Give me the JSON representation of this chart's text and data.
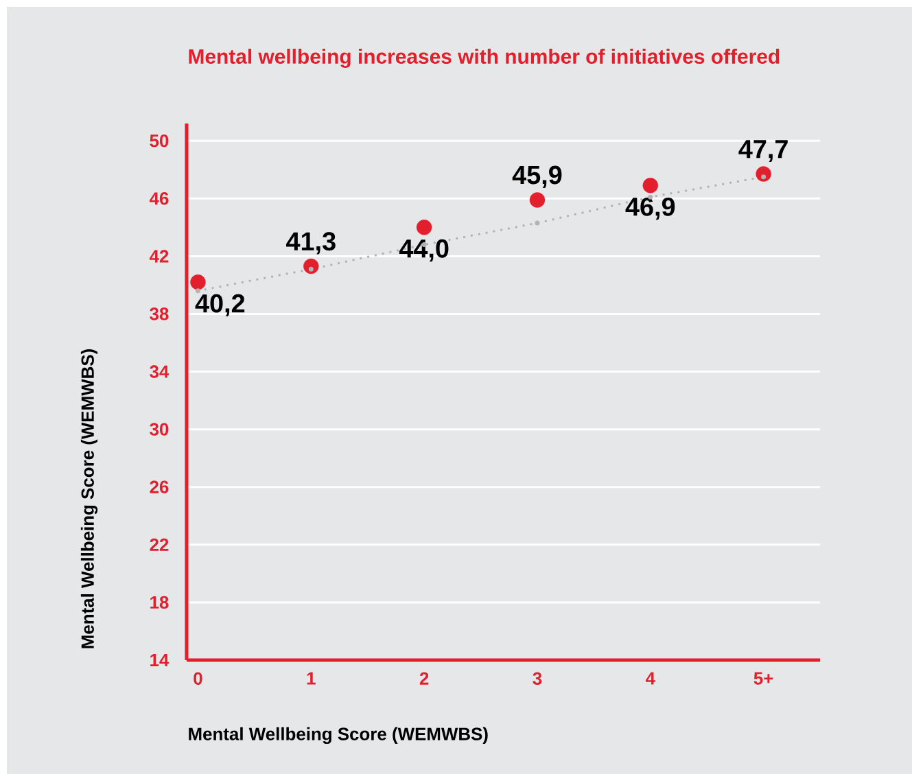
{
  "chart_data": {
    "type": "scatter",
    "title": "Mental wellbeing increases with number of initiatives offered",
    "xlabel": "Mental Wellbeing Score (WEMWBS)",
    "ylabel": "Mental Wellbeing Score (WEMWBS)",
    "categories": [
      "0",
      "1",
      "2",
      "3",
      "4",
      "5+"
    ],
    "ylim": [
      14,
      51.2
    ],
    "yticks": [
      14,
      18,
      22,
      26,
      30,
      34,
      38,
      42,
      46,
      50
    ],
    "grid": "y",
    "series": [
      {
        "color": "#e31e2d",
        "marker": "circle",
        "values": [
          40.2,
          41.3,
          44.0,
          45.9,
          46.9,
          47.7
        ],
        "value_labels": [
          "40,2",
          "41,3",
          "44,0",
          "45,9",
          "46,9",
          "47,7"
        ]
      },
      {
        "type": "line",
        "color": "#b3b3b3",
        "marker": "none",
        "line_style": "dotted",
        "values": [
          39.6,
          41.1,
          42.8,
          44.3,
          46.1,
          47.5
        ]
      }
    ]
  }
}
